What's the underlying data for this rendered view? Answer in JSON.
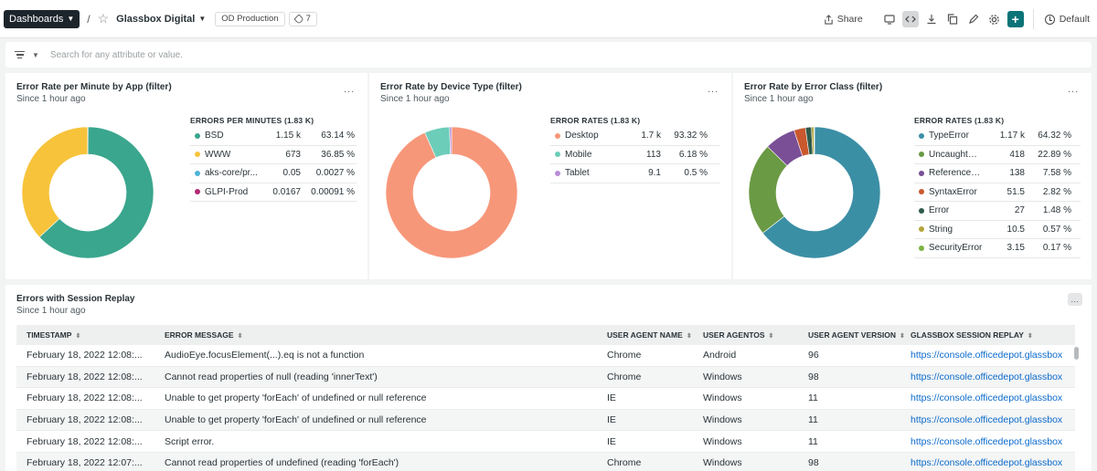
{
  "topbar": {
    "dashboards_label": "Dashboards",
    "separator": "/",
    "dashboard_title": "Glassbox Digital",
    "account": "OD Production",
    "tag_count": "7",
    "share_label": "Share",
    "default_label": "Default"
  },
  "filter": {
    "placeholder": "Search for any attribute or value."
  },
  "colors": {
    "teal": "#3aa68d",
    "yellow": "#f7c33a",
    "light_blue": "#4fb4d6",
    "magenta": "#b02a74",
    "salmon": "#f7977a",
    "mint": "#6ccdb9",
    "lavender": "#b98dd6",
    "steel_blue": "#3b8fa5",
    "green": "#6a9a44",
    "purple": "#7a4f96",
    "rust": "#c9582e",
    "dark_green": "#2f5a4a",
    "olive": "#b3a43a",
    "lime": "#7cb342",
    "accent": "#0c7478",
    "link": "#0b6acb"
  },
  "panels": [
    {
      "title": "Error Rate per Minute by App (filter)",
      "subtitle": "Since 1 hour ago",
      "menu": "...",
      "legend_title": "ERRORS PER MINUTES (1.83 K)",
      "chart_data": {
        "type": "pie",
        "series": [
          {
            "name": "BSD",
            "value": "1.15 k",
            "percent": "63.14 %",
            "share": 63.14,
            "color": "#3aa68d"
          },
          {
            "name": "WWW",
            "value": "673",
            "percent": "36.85 %",
            "share": 36.85,
            "color": "#f7c33a"
          },
          {
            "name": "aks-core/pr...",
            "value": "0.05",
            "percent": "0.0027 %",
            "share": 0.0027,
            "color": "#4fb4d6"
          },
          {
            "name": "GLPI-Prod",
            "value": "0.0167",
            "percent": "0.00091 %",
            "share": 0.00091,
            "color": "#b02a74"
          }
        ]
      }
    },
    {
      "title": "Error Rate by Device Type (filter)",
      "subtitle": "Since 1 hour ago",
      "menu": "...",
      "legend_title": "ERROR RATES (1.83 K)",
      "chart_data": {
        "type": "pie",
        "series": [
          {
            "name": "Desktop",
            "value": "1.7 k",
            "percent": "93.32 %",
            "share": 93.32,
            "color": "#f7977a"
          },
          {
            "name": "Mobile",
            "value": "113",
            "percent": "6.18 %",
            "share": 6.18,
            "color": "#6ccdb9"
          },
          {
            "name": "Tablet",
            "value": "9.1",
            "percent": "0.5 %",
            "share": 0.5,
            "color": "#b98dd6"
          }
        ]
      }
    },
    {
      "title": "Error Rate by Error Class (filter)",
      "subtitle": "Since 1 hour ago",
      "menu": "...",
      "legend_title": "ERROR RATES (1.83 K)",
      "chart_data": {
        "type": "pie",
        "series": [
          {
            "name": "TypeError",
            "value": "1.17 k",
            "percent": "64.32 %",
            "share": 64.32,
            "color": "#3b8fa5"
          },
          {
            "name": "UncaughtEx...",
            "value": "418",
            "percent": "22.89 %",
            "share": 22.89,
            "color": "#6a9a44"
          },
          {
            "name": "ReferenceEr...",
            "value": "138",
            "percent": "7.58 %",
            "share": 7.58,
            "color": "#7a4f96"
          },
          {
            "name": "SyntaxError",
            "value": "51.5",
            "percent": "2.82 %",
            "share": 2.82,
            "color": "#c9582e"
          },
          {
            "name": "Error",
            "value": "27",
            "percent": "1.48 %",
            "share": 1.48,
            "color": "#2f5a4a"
          },
          {
            "name": "String",
            "value": "10.5",
            "percent": "0.57 %",
            "share": 0.57,
            "color": "#b3a43a"
          },
          {
            "name": "SecurityError",
            "value": "3.15",
            "percent": "0.17 %",
            "share": 0.17,
            "color": "#7cb342"
          }
        ]
      }
    }
  ],
  "table": {
    "title": "Errors with Session Replay",
    "subtitle": "Since 1 hour ago",
    "menu": "...",
    "columns": [
      "TIMESTAMP",
      "ERROR MESSAGE",
      "USER AGENT NAME",
      "USER AGENTOS",
      "USER AGENT VERSION",
      "GLASSBOX SESSION REPLAY"
    ],
    "rows": [
      [
        "February 18, 2022 12:08:...",
        "AudioEye.focusElement(...).eq is not a function",
        "Chrome",
        "Android",
        "96",
        "https://console.officedepot.glassbox"
      ],
      [
        "February 18, 2022 12:08:...",
        "Cannot read properties of null (reading 'innerText')",
        "Chrome",
        "Windows",
        "98",
        "https://console.officedepot.glassbox"
      ],
      [
        "February 18, 2022 12:08:...",
        "Unable to get property 'forEach' of undefined or null reference",
        "IE",
        "Windows",
        "11",
        "https://console.officedepot.glassbox"
      ],
      [
        "February 18, 2022 12:08:...",
        "Unable to get property 'forEach' of undefined or null reference",
        "IE",
        "Windows",
        "11",
        "https://console.officedepot.glassbox"
      ],
      [
        "February 18, 2022 12:08:...",
        "Script error.",
        "IE",
        "Windows",
        "11",
        "https://console.officedepot.glassbox"
      ],
      [
        "February 18, 2022 12:07:...",
        "Cannot read properties of undefined (reading 'forEach')",
        "Chrome",
        "Windows",
        "98",
        "https://console.officedepot.glassbox"
      ]
    ]
  }
}
